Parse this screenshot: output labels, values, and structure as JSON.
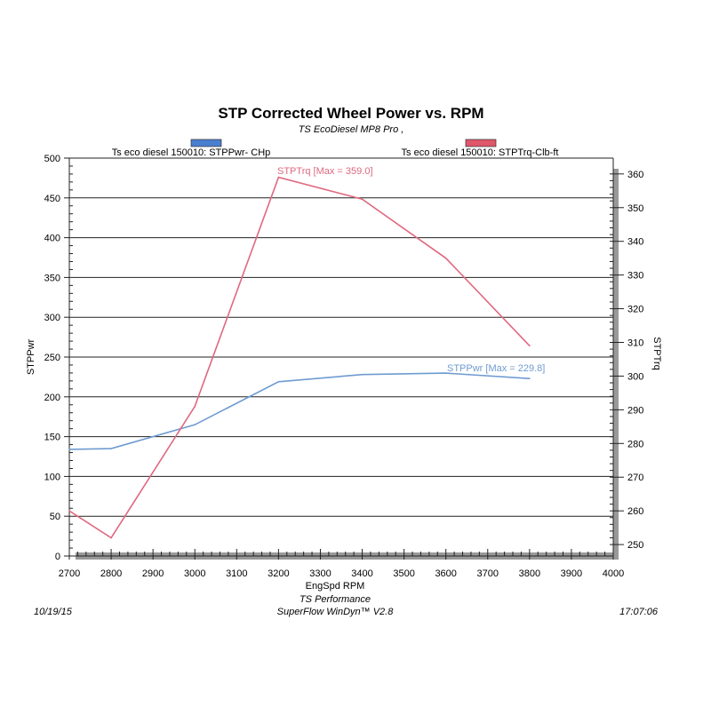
{
  "chart_data": {
    "type": "line",
    "title": "STP Corrected Wheel Power vs. RPM",
    "subtitle": "TS EcoDiesel MP8 Pro ,",
    "xlabel": "EngSpd  RPM",
    "ylabel": "STPPwr",
    "y2label": "STPTrq",
    "xlim": [
      2700,
      4000
    ],
    "ylim": [
      0,
      500
    ],
    "y2lim": [
      246.6,
      364.7
    ],
    "xticks": [
      2700,
      2800,
      2900,
      3000,
      3100,
      3200,
      3300,
      3400,
      3500,
      3600,
      3700,
      3800,
      3900,
      4000
    ],
    "yticks": [
      0,
      50,
      100,
      150,
      200,
      250,
      300,
      350,
      400,
      450,
      500
    ],
    "y2ticks": [
      250,
      260,
      270,
      280,
      290,
      300,
      310,
      320,
      330,
      340,
      350,
      360
    ],
    "grid": true,
    "legend_placement": "top",
    "series": [
      {
        "name": "Ts eco diesel 150010: STPPwr- CHp",
        "axis": "left",
        "color": "#6f9bd1",
        "annotation": "STPPwr [Max = 229.8]",
        "x": [
          2700,
          2800,
          3000,
          3200,
          3400,
          3600,
          3800
        ],
        "y": [
          134,
          135,
          165,
          219,
          228,
          229.8,
          223
        ]
      },
      {
        "name": "Ts eco diesel 150010: STPTrq-Clb-ft",
        "axis": "right",
        "color": "#e0687f",
        "annotation": "STPTrq [Max = 359.0]",
        "x": [
          2700,
          2800,
          3000,
          3200,
          3400,
          3600,
          3800
        ],
        "y": [
          260,
          252,
          291,
          359,
          352.5,
          335,
          309
        ]
      }
    ]
  },
  "legend_colors": [
    "#4a7fd0",
    "#e0566a"
  ],
  "footer": {
    "date": "10/19/15",
    "company": "TS Performance",
    "software": "SuperFlow WinDyn™ V2.8",
    "time": "17:07:06"
  }
}
